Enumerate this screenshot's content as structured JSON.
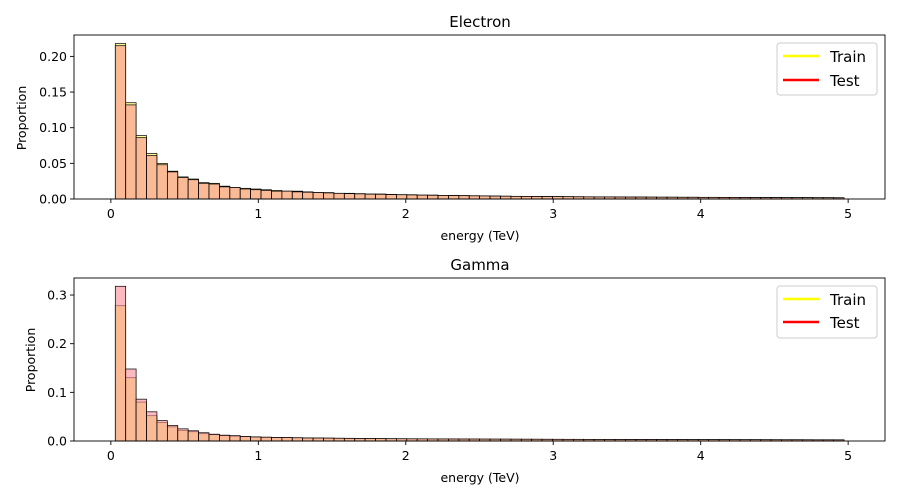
{
  "chart_data": [
    {
      "type": "bar",
      "title": "Electron",
      "xlabel": "energy (TeV)",
      "ylabel": "Proportion",
      "xlim": [
        -0.25,
        5.25
      ],
      "ylim": [
        0,
        0.23
      ],
      "xticks": [
        "0",
        "1",
        "2",
        "3",
        "4",
        "5"
      ],
      "yticks": [
        "0.00",
        "0.05",
        "0.10",
        "0.15",
        "0.20"
      ],
      "legend_position": "top-right",
      "bin_start": 0.03,
      "bin_width": 0.0706,
      "series": [
        {
          "name": "Train",
          "color": "#ffff00",
          "values": [
            0.218,
            0.135,
            0.089,
            0.064,
            0.05,
            0.039,
            0.031,
            0.028,
            0.023,
            0.022,
            0.018,
            0.016,
            0.015,
            0.014,
            0.013,
            0.012,
            0.011,
            0.011,
            0.01,
            0.009,
            0.009,
            0.008,
            0.008,
            0.0075,
            0.007,
            0.007,
            0.0065,
            0.006,
            0.006,
            0.0055,
            0.0055,
            0.005,
            0.005,
            0.0048,
            0.0046,
            0.0044,
            0.0042,
            0.004,
            0.0038,
            0.0037,
            0.0036,
            0.0035,
            0.0034,
            0.0033,
            0.0032,
            0.0031,
            0.003,
            0.003,
            0.0029,
            0.0028,
            0.0028,
            0.0027,
            0.0026,
            0.0026,
            0.0025,
            0.0025,
            0.0024,
            0.0024,
            0.0023,
            0.0023,
            0.0022,
            0.0022,
            0.0021,
            0.0021,
            0.002,
            0.002,
            0.002,
            0.0019,
            0.0019,
            0.0018
          ]
        },
        {
          "name": "Test",
          "color": "#ff0000",
          "values": [
            0.215,
            0.132,
            0.086,
            0.061,
            0.048,
            0.038,
            0.03,
            0.027,
            0.022,
            0.021,
            0.017,
            0.016,
            0.014,
            0.013,
            0.012,
            0.011,
            0.011,
            0.01,
            0.0095,
            0.009,
            0.0085,
            0.008,
            0.0075,
            0.0072,
            0.0068,
            0.0066,
            0.0062,
            0.006,
            0.0057,
            0.0054,
            0.0052,
            0.005,
            0.0048,
            0.0046,
            0.0044,
            0.0043,
            0.0041,
            0.0039,
            0.0037,
            0.0036,
            0.0035,
            0.0034,
            0.0033,
            0.0032,
            0.0031,
            0.003,
            0.0029,
            0.0029,
            0.0028,
            0.0027,
            0.0027,
            0.0026,
            0.0025,
            0.0025,
            0.0024,
            0.0024,
            0.0023,
            0.0023,
            0.0022,
            0.0022,
            0.0021,
            0.0021,
            0.002,
            0.002,
            0.002,
            0.0019,
            0.0019,
            0.0018,
            0.0018,
            0.0017
          ]
        }
      ]
    },
    {
      "type": "bar",
      "title": "Gamma",
      "xlabel": "energy (TeV)",
      "ylabel": "Proportion",
      "xlim": [
        -0.25,
        5.25
      ],
      "ylim": [
        0,
        0.335
      ],
      "xticks": [
        "0",
        "1",
        "2",
        "3",
        "4",
        "5"
      ],
      "yticks": [
        "0.0",
        "0.1",
        "0.2",
        "0.3"
      ],
      "legend_position": "top-right",
      "bin_start": 0.03,
      "bin_width": 0.0706,
      "series": [
        {
          "name": "Train",
          "color": "#ffff00",
          "values": [
            0.278,
            0.13,
            0.08,
            0.052,
            0.038,
            0.029,
            0.022,
            0.019,
            0.015,
            0.013,
            0.011,
            0.01,
            0.009,
            0.008,
            0.0075,
            0.007,
            0.007,
            0.0065,
            0.006,
            0.006,
            0.0058,
            0.0055,
            0.0052,
            0.005,
            0.005,
            0.0048,
            0.0046,
            0.0045,
            0.0044,
            0.0043,
            0.0042,
            0.0041,
            0.004,
            0.004,
            0.0039,
            0.0038,
            0.0038,
            0.0037,
            0.0036,
            0.0036,
            0.0035,
            0.0035,
            0.0034,
            0.0034,
            0.0033,
            0.0033,
            0.0032,
            0.0032,
            0.0031,
            0.0031,
            0.003,
            0.003,
            0.003,
            0.0029,
            0.0029,
            0.0028,
            0.0028,
            0.0028,
            0.0027,
            0.0027,
            0.0026,
            0.0026,
            0.0026,
            0.0025,
            0.0025,
            0.0025,
            0.0024,
            0.0024,
            0.0024,
            0.0023
          ]
        },
        {
          "name": "Test",
          "color": "#ff0000",
          "values": [
            0.318,
            0.148,
            0.086,
            0.06,
            0.042,
            0.032,
            0.025,
            0.021,
            0.017,
            0.014,
            0.012,
            0.011,
            0.0095,
            0.0085,
            0.008,
            0.0075,
            0.0072,
            0.0068,
            0.0064,
            0.0062,
            0.006,
            0.0058,
            0.0056,
            0.0054,
            0.0052,
            0.005,
            0.0048,
            0.0047,
            0.0046,
            0.0045,
            0.0044,
            0.0043,
            0.0042,
            0.0041,
            0.0041,
            0.004,
            0.0039,
            0.0039,
            0.0038,
            0.0037,
            0.0037,
            0.0036,
            0.0036,
            0.0035,
            0.0035,
            0.0034,
            0.0034,
            0.0033,
            0.0033,
            0.0032,
            0.0032,
            0.0031,
            0.0031,
            0.0031,
            0.003,
            0.003,
            0.0029,
            0.0029,
            0.0029,
            0.0028,
            0.0028,
            0.0028,
            0.0027,
            0.0027,
            0.0026,
            0.0026,
            0.0026,
            0.0025,
            0.0025,
            0.0025
          ]
        }
      ]
    }
  ]
}
